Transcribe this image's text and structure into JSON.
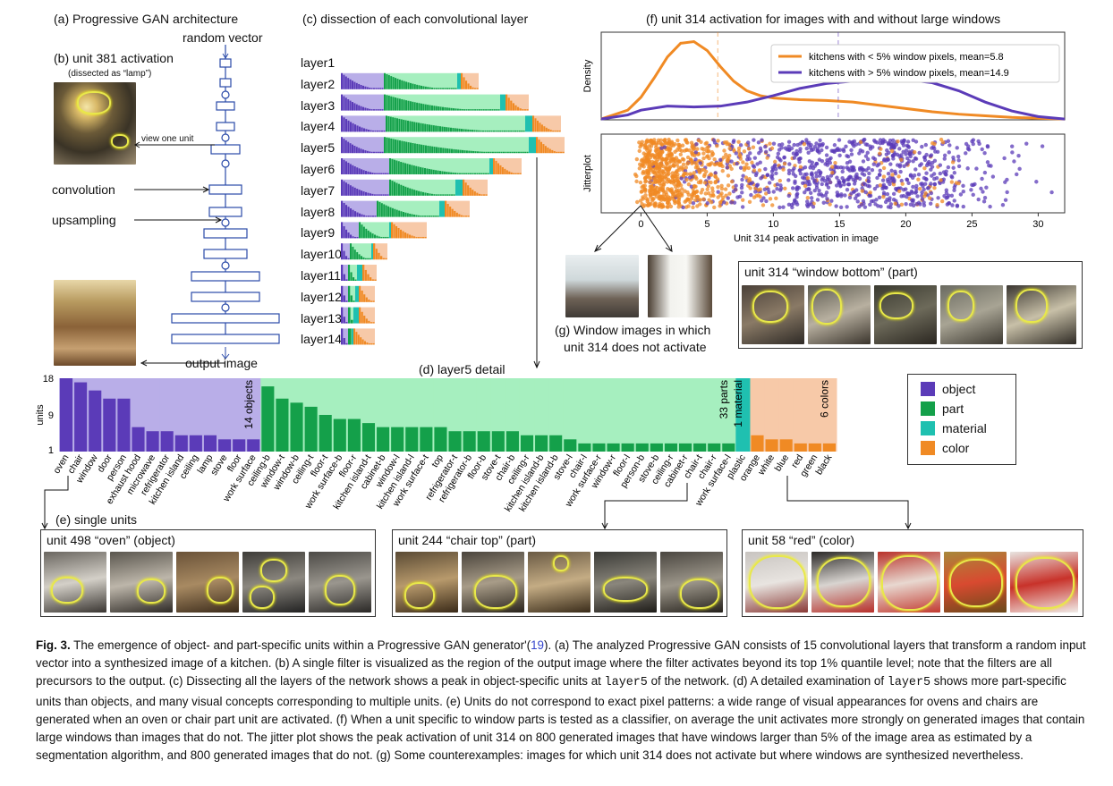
{
  "panels": {
    "a_title": "(a) Progressive GAN architecture",
    "a_random_vector": "random vector",
    "b_title": "(b) unit 381 activation",
    "b_subtitle": "(dissected as “lamp”)",
    "view_one_unit": "view one unit",
    "convolution": "convolution",
    "upsampling": "upsampling",
    "output_image": "output image",
    "c_title": "(c) dissection of each convolutional layer",
    "d_title": "(d) layer5 detail",
    "e_title": "(e) single units",
    "f_title": "(f) unit 314 activation for images with and without large windows",
    "g_title_line1": "(g) Window images in which",
    "g_title_line2": "unit 314 does not activate"
  },
  "layers": [
    "layer1",
    "layer2",
    "layer3",
    "layer4",
    "layer5",
    "layer6",
    "layer7",
    "layer8",
    "layer9",
    "layer10",
    "layer11",
    "layer12",
    "layer13",
    "layer14"
  ],
  "legend": {
    "items": [
      {
        "label": "object",
        "color": "#5b3bb8"
      },
      {
        "label": "part",
        "color": "#14a04a"
      },
      {
        "label": "material",
        "color": "#1fc0b0"
      },
      {
        "label": "color",
        "color": "#f08a24"
      }
    ]
  },
  "colors": {
    "object": "#5b3bb8",
    "object_bg": "#b9aee8",
    "part": "#14a04a",
    "part_bg": "#a6efbf",
    "material": "#1fc0b0",
    "color": "#f08a24",
    "color_bg": "#f7c9a8"
  },
  "chart_data": [
    {
      "type": "bar",
      "title": "(d) layer5 detail",
      "ylabel": "units",
      "yticks": [
        "18",
        "9",
        "1"
      ],
      "ylim": [
        1,
        18
      ],
      "group_labels": [
        "14 objects",
        "33 parts",
        "1 material",
        "6 colors"
      ],
      "categories": [
        "oven",
        "chair",
        "window",
        "door",
        "person",
        "exhaust hood",
        "microwave",
        "refrigerator",
        "kitchen island",
        "ceiling",
        "lamp",
        "stove",
        "floor",
        "work surface",
        "ceiling-b",
        "window-t",
        "window-b",
        "ceiling-t",
        "floor-t",
        "work surface-b",
        "floor-r",
        "kitchen island-t",
        "cabinet-b",
        "window-l",
        "kitchen island-l",
        "work surface-t",
        "top",
        "refrigerator-t",
        "refrigerator-b",
        "floor-b",
        "stove-t",
        "chair-b",
        "ceiling-r",
        "kitchen island-b",
        "kitchen island-b",
        "stove-l",
        "chair-l",
        "work surface-r",
        "window-r",
        "floor-l",
        "person-b",
        "stove-b",
        "ceiling-r",
        "cabinet-r",
        "chair-t",
        "chair-r",
        "work surface-l",
        "plastic",
        "orange",
        "white",
        "blue",
        "red",
        "green",
        "black"
      ],
      "groups": [
        "object",
        "object",
        "object",
        "object",
        "object",
        "object",
        "object",
        "object",
        "object",
        "object",
        "object",
        "object",
        "object",
        "object",
        "part",
        "part",
        "part",
        "part",
        "part",
        "part",
        "part",
        "part",
        "part",
        "part",
        "part",
        "part",
        "part",
        "part",
        "part",
        "part",
        "part",
        "part",
        "part",
        "part",
        "part",
        "part",
        "part",
        "part",
        "part",
        "part",
        "part",
        "part",
        "part",
        "part",
        "part",
        "part",
        "part",
        "material",
        "color",
        "color",
        "color",
        "color",
        "color",
        "color"
      ],
      "values": [
        18,
        17,
        15,
        13,
        13,
        6,
        5,
        5,
        4,
        4,
        4,
        3,
        3,
        3,
        16,
        13,
        12,
        11,
        9,
        8,
        8,
        7,
        6,
        6,
        6,
        6,
        6,
        5,
        5,
        5,
        5,
        5,
        4,
        4,
        4,
        3,
        2,
        2,
        2,
        2,
        2,
        2,
        2,
        2,
        2,
        2,
        2,
        2,
        4,
        3,
        3,
        2,
        2,
        2
      ]
    },
    {
      "type": "line",
      "title": "(f) unit 314 activation for images with and without large windows",
      "ylabel": "Density",
      "xlim": [
        -3,
        32
      ],
      "series": [
        {
          "name": "kitchens with < 5% window pixels, mean=5.8",
          "color": "#f08a24",
          "mean": 5.8,
          "x": [
            -3,
            -1,
            0,
            1,
            2,
            3,
            4,
            5,
            6,
            7,
            8,
            9,
            10,
            12,
            14,
            16,
            18,
            20,
            22,
            24,
            26,
            28,
            30,
            32
          ],
          "y": [
            0.01,
            0.12,
            0.28,
            0.52,
            0.78,
            0.95,
            0.97,
            0.86,
            0.66,
            0.48,
            0.36,
            0.3,
            0.27,
            0.25,
            0.24,
            0.22,
            0.18,
            0.14,
            0.1,
            0.07,
            0.05,
            0.03,
            0.02,
            0.01
          ]
        },
        {
          "name": "kitchens with > 5% window pixels, mean=14.9",
          "color": "#5b3bb8",
          "mean": 14.9,
          "x": [
            -3,
            -1,
            0,
            2,
            4,
            6,
            8,
            10,
            12,
            14,
            16,
            18,
            20,
            22,
            24,
            26,
            28,
            30,
            32
          ],
          "y": [
            0.01,
            0.06,
            0.12,
            0.17,
            0.16,
            0.17,
            0.22,
            0.3,
            0.39,
            0.45,
            0.48,
            0.5,
            0.5,
            0.46,
            0.36,
            0.22,
            0.11,
            0.04,
            0.01
          ]
        }
      ]
    },
    {
      "type": "scatter",
      "ylabel": "Jitterplot",
      "xlabel": "Unit 314 peak activation in image",
      "xlim": [
        -3,
        32
      ],
      "xticks": [
        "0",
        "5",
        "10",
        "15",
        "20",
        "25",
        "30"
      ],
      "series": [
        {
          "name": "kitchens with < 5% window pixels",
          "color": "#f08a24",
          "count": 800,
          "distribution": "concentrated 0–8, tail to 25"
        },
        {
          "name": "kitchens with > 5% window pixels",
          "color": "#5b3bb8",
          "count": 800,
          "distribution": "spread 0–32, peak 14–20"
        }
      ]
    },
    {
      "type": "bar",
      "title": "(c) dissection of each convolutional layer",
      "categories": [
        "layer1",
        "layer2",
        "layer3",
        "layer4",
        "layer5",
        "layer6",
        "layer7",
        "layer8",
        "layer9",
        "layer10",
        "layer11",
        "layer12",
        "layer13",
        "layer14"
      ]
    }
  ],
  "units": [
    {
      "title": "unit 498 “oven” (object)"
    },
    {
      "title": "unit 244 “chair top” (part)"
    },
    {
      "title": "unit 58 “red” (color)"
    },
    {
      "title": "unit 314 “window bottom” (part)"
    }
  ],
  "caption": {
    "fig": "Fig. 3.",
    "intro": " The emergence of object- and part-specific units within a Progressive GAN generator'(",
    "ref": "19",
    "a": "). (a) The analyzed Progressive GAN consists of 15 convolutional layers that transform a random input vector into a synthesized image of a kitchen. (b) A single filter is visualized as the region of the output image where the filter activates beyond its top 1% quantile level; note that the filters are all precursors to the output. (c) Dissecting all the layers of the network shows a peak in object-specific units at ",
    "layer5a": "layer5",
    "b": " of the network. (d) A detailed examination of ",
    "layer5b": "layer5",
    "c": " shows more part-specific units than objects, and many visual concepts corresponding to multiple units. (e) Units do not correspond to exact pixel patterns: a wide range of visual appearances for ovens and chairs are generated when an oven or chair part unit are activated. (f) When a unit specific to window parts is tested as a classifier, on average the unit activates more strongly on generated images that contain large windows than images that do not. The jitter plot shows the peak activation of unit 314 on 800 generated images that have windows larger than 5% of the image area as estimated by a segmentation algorithm, and 800 generated images that do not. (g) Some counterexamples: images for which unit 314 does not activate but where windows are synthesized nevertheless."
  }
}
